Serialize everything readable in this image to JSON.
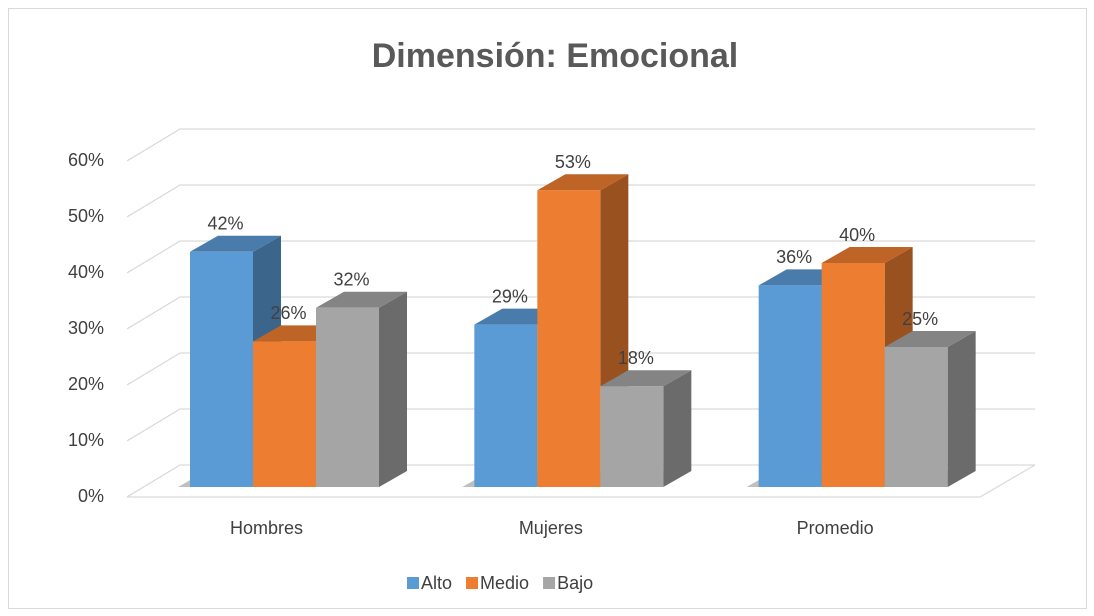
{
  "chart_data": {
    "type": "bar3d",
    "title": "Dimensión: Emocional",
    "categories": [
      "Hombres",
      "Mujeres",
      "Promedio"
    ],
    "series": [
      {
        "name": "Alto",
        "color": "#5b9bd5",
        "values": [
          42,
          29,
          36
        ],
        "value_labels": [
          "42%",
          "29%",
          "36%"
        ]
      },
      {
        "name": "Medio",
        "color": "#ed7d31",
        "values": [
          26,
          53,
          40
        ],
        "value_labels": [
          "26%",
          "53%",
          "40%"
        ]
      },
      {
        "name": "Bajo",
        "color": "#a5a5a5",
        "values": [
          32,
          18,
          25
        ],
        "value_labels": [
          "32%",
          "18%",
          "25%"
        ]
      }
    ],
    "ylim": [
      0,
      60
    ],
    "yticks": [
      {
        "value": 0,
        "label": "0%"
      },
      {
        "value": 10,
        "label": "10%"
      },
      {
        "value": 20,
        "label": "20%"
      },
      {
        "value": 30,
        "label": "30%"
      },
      {
        "value": 40,
        "label": "40%"
      },
      {
        "value": 50,
        "label": "50%"
      },
      {
        "value": 60,
        "label": "60%"
      }
    ],
    "grid": true,
    "legend": "bottom"
  }
}
